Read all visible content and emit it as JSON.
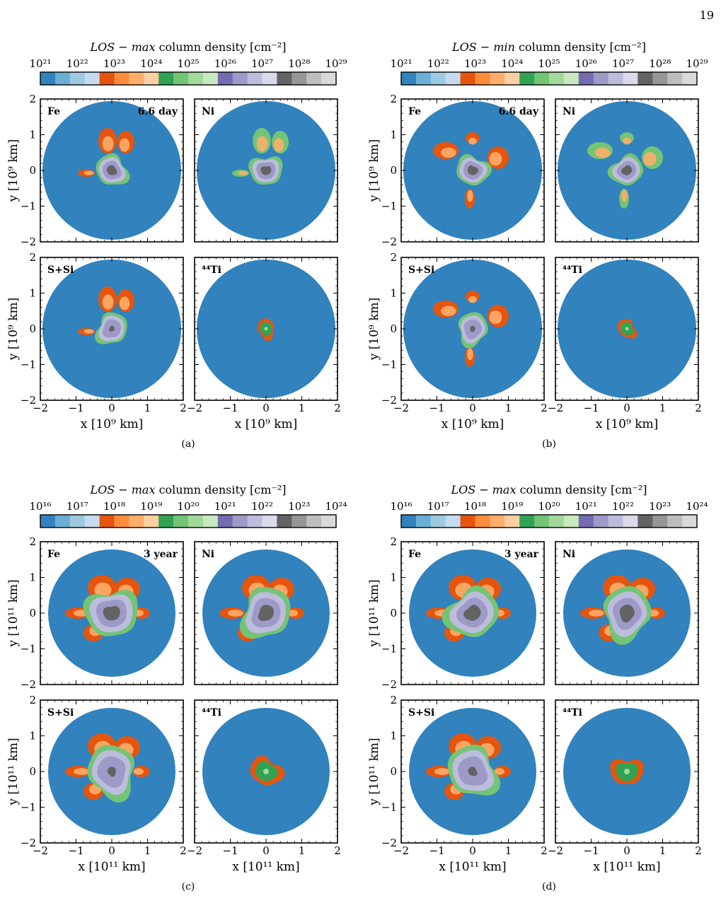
{
  "page_number": "19",
  "colors": {
    "blue": [
      "#3182bd",
      "#6baed6",
      "#9ecae1",
      "#c6dbef"
    ],
    "orange": [
      "#e6550d",
      "#fd8d3c",
      "#fdae6b",
      "#fdd0a2"
    ],
    "green": [
      "#31a354",
      "#74c476",
      "#a1d99b",
      "#c7e9c0"
    ],
    "purple": [
      "#756bb1",
      "#9e9ac8",
      "#bcbddc",
      "#dadaeb"
    ],
    "gray": [
      "#636363",
      "#969696",
      "#bdbdbd",
      "#d9d9d9"
    ],
    "disk": "#3182bd"
  },
  "panel_labels": [
    "Fe",
    "Ni",
    "S+Si",
    "⁴⁴Ti"
  ],
  "figures": [
    {
      "caption": "(a)",
      "colorbar_title_prefix": "LOS − ",
      "colorbar_title_italic": "max",
      "colorbar_title_suffix": " column density [cm⁻²]",
      "colorbar_ticks": [
        "10²¹",
        "10²²",
        "10²³",
        "10²⁴",
        "10²⁵",
        "10²⁶",
        "10²⁷",
        "10²⁸",
        "10²⁹"
      ],
      "time_label": "6.6 day",
      "xlabel": "x [10⁹ km]",
      "ylabel": "y [10⁹ km]",
      "xticks": [
        "−2",
        "−1",
        "0",
        "1",
        "2"
      ],
      "yticks": [
        "2",
        "1",
        "0",
        "−1",
        "−2"
      ]
    },
    {
      "caption": "(b)",
      "colorbar_title_prefix": "LOS − ",
      "colorbar_title_italic": "min",
      "colorbar_title_suffix": " column density [cm⁻²]",
      "colorbar_ticks": [
        "10²¹",
        "10²²",
        "10²³",
        "10²⁴",
        "10²⁵",
        "10²⁶",
        "10²⁷",
        "10²⁸",
        "10²⁹"
      ],
      "time_label": "6.6 day",
      "xlabel": "x [10⁹ km]",
      "ylabel": "y [10⁹ km]",
      "xticks": [
        "−2",
        "−1",
        "0",
        "1",
        "2"
      ],
      "yticks": [
        "2",
        "1",
        "0",
        "−1",
        "−2"
      ]
    },
    {
      "caption": "(c)",
      "colorbar_title_prefix": "LOS − ",
      "colorbar_title_italic": "max",
      "colorbar_title_suffix": " column density [cm⁻²]",
      "colorbar_ticks": [
        "10¹⁶",
        "10¹⁷",
        "10¹⁸",
        "10¹⁹",
        "10²⁰",
        "10²¹",
        "10²²",
        "10²³",
        "10²⁴"
      ],
      "time_label": "3 year",
      "xlabel": "x [10¹¹ km]",
      "ylabel": "y [10¹¹ km]",
      "xticks": [
        "−2",
        "−1",
        "0",
        "1",
        "2"
      ],
      "yticks": [
        "2",
        "1",
        "0",
        "−1",
        "−2"
      ]
    },
    {
      "caption": "(d)",
      "colorbar_title_prefix": "LOS − ",
      "colorbar_title_italic": "max",
      "colorbar_title_suffix": " column density [cm⁻²]",
      "colorbar_ticks": [
        "10¹⁶",
        "10¹⁷",
        "10¹⁸",
        "10¹⁹",
        "10²⁰",
        "10²¹",
        "10²²",
        "10²³",
        "10²⁴"
      ],
      "time_label": "3 year",
      "xlabel": "x [10¹¹ km]",
      "ylabel": "y [10¹¹ km]",
      "xticks": [
        "−2",
        "−1",
        "0",
        "1",
        "2"
      ],
      "yticks": [
        "2",
        "1",
        "0",
        "−1",
        "−2"
      ]
    }
  ]
}
